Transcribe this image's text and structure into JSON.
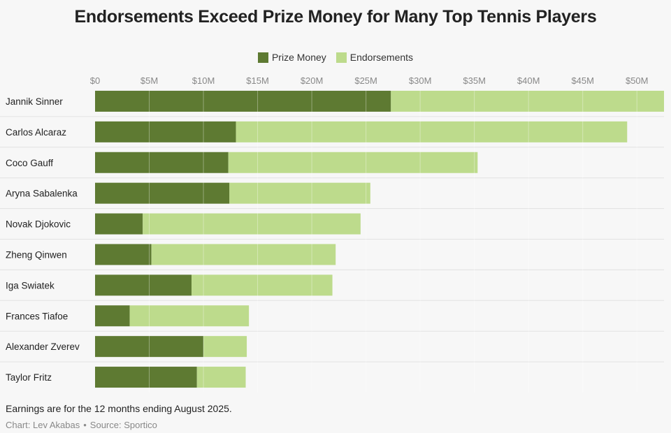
{
  "colors": {
    "prize": "#5e7a32",
    "endorse": "#bddb8c",
    "grid": "#e2e2e2",
    "label": "#222222",
    "tick": "#888888"
  },
  "footer": {
    "note": "Earnings are for the 12 months ending August 2025.",
    "chart_by": "Chart: Lev Akabas",
    "separator": "•",
    "source": "Source: Sportico"
  },
  "chart_data": {
    "type": "bar",
    "orientation": "horizontal",
    "stacked": true,
    "title": "Endorsements Exceed Prize Money for Many Top Tennis Players",
    "legend_position": "top-center",
    "xlim": [
      0,
      52.5
    ],
    "xticks": [
      0,
      5,
      10,
      15,
      20,
      25,
      30,
      35,
      40,
      45,
      50
    ],
    "xtick_labels": [
      "$0",
      "$5M",
      "$10M",
      "$15M",
      "$20M",
      "$25M",
      "$30M",
      "$35M",
      "$40M",
      "$45M",
      "$50M"
    ],
    "categories": [
      "Jannik Sinner",
      "Carlos Alcaraz",
      "Coco Gauff",
      "Aryna Sabalenka",
      "Novak Djokovic",
      "Zheng Qinwen",
      "Iga Swiatek",
      "Frances Tiafoe",
      "Alexander Zverev",
      "Taylor Fritz"
    ],
    "series": [
      {
        "name": "Prize Money",
        "values": [
          27.3,
          13.0,
          12.3,
          12.4,
          4.4,
          5.2,
          8.9,
          3.2,
          10.0,
          9.4
        ]
      },
      {
        "name": "Endorsements",
        "values": [
          25.2,
          36.1,
          23.0,
          13.0,
          20.1,
          17.0,
          13.0,
          11.0,
          4.0,
          4.5
        ]
      }
    ]
  }
}
